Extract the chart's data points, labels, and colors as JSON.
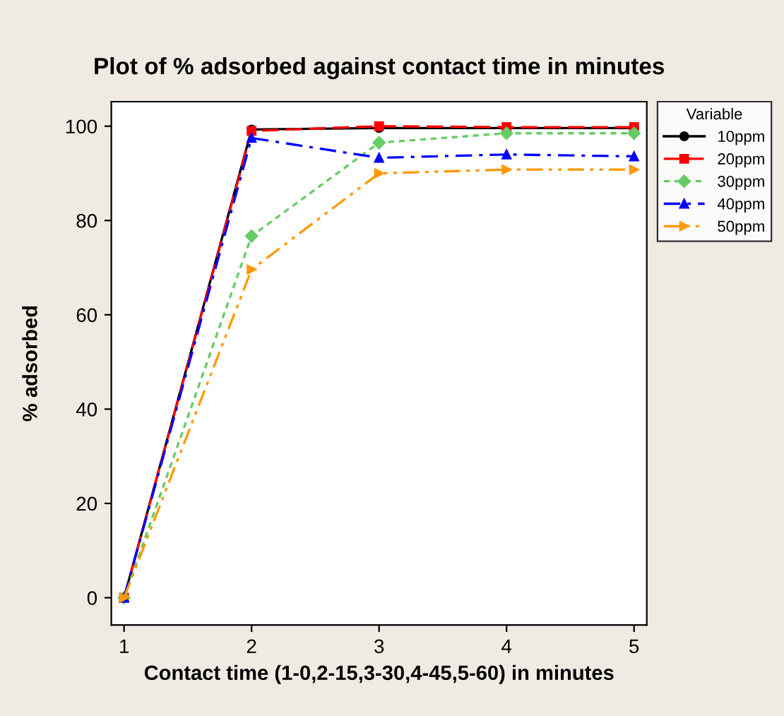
{
  "chart_data": {
    "type": "line",
    "title": "Plot of % adsorbed against contact time in minutes",
    "xlabel": "Contact time (1-0,2-15,3-30,4-45,5-60) in minutes",
    "ylabel": "% adsorbed",
    "legend_title": "Variable",
    "x": [
      1,
      2,
      3,
      4,
      5
    ],
    "series": [
      {
        "name": "10ppm",
        "color": "#000000",
        "marker": "circle",
        "line_style": "solid",
        "values": [
          0,
          99.3,
          99.6,
          99.6,
          99.6
        ]
      },
      {
        "name": "20ppm",
        "color": "#ff0000",
        "marker": "square",
        "line_style": "dashed",
        "values": [
          0,
          99,
          100,
          99.8,
          99.8
        ]
      },
      {
        "name": "30ppm",
        "color": "#66cc66",
        "marker": "diamond",
        "line_style": "dotted",
        "values": [
          0,
          76.7,
          96.5,
          98.5,
          98.5
        ]
      },
      {
        "name": "40ppm",
        "color": "#0000ff",
        "marker": "triangle",
        "line_style": "dashdot",
        "values": [
          0,
          97.5,
          93.3,
          94,
          93.6
        ]
      },
      {
        "name": "50ppm",
        "color": "#ff9900",
        "marker": "triangle_right",
        "line_style": "dashdotdot",
        "values": [
          0,
          69.6,
          90,
          90.8,
          90.8
        ]
      }
    ],
    "xlim": [
      0.9,
      5.1
    ],
    "ylim": [
      -5.8,
      105.2
    ],
    "xticks": [
      1,
      2,
      3,
      4,
      5
    ],
    "yticks": [
      0,
      20,
      40,
      60,
      80,
      100
    ],
    "grid": false,
    "legend": "top right"
  }
}
